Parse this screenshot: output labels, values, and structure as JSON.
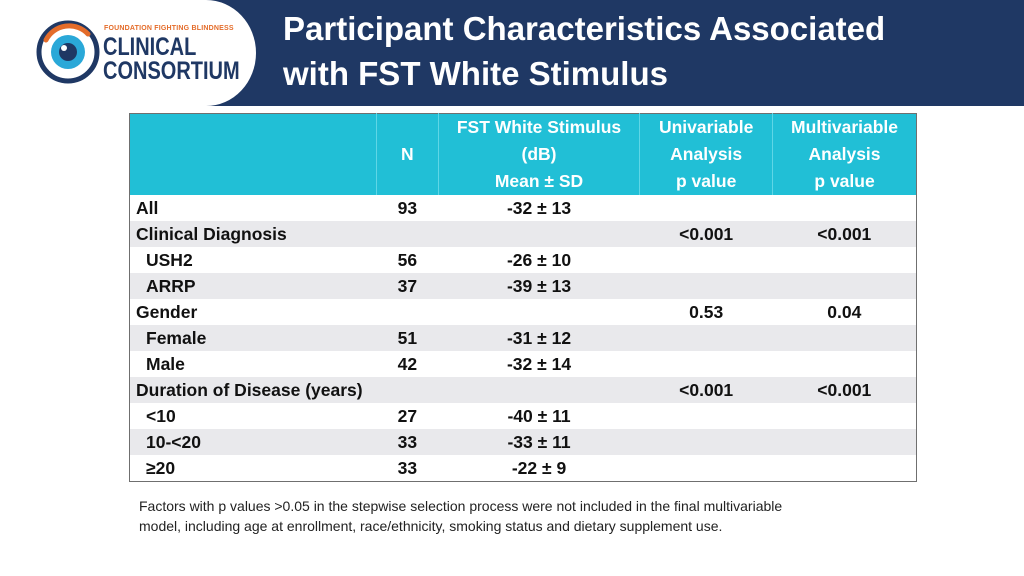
{
  "logo": {
    "tagline": "FOUNDATION FIGHTING BLINDNESS",
    "line1": "CLINICAL",
    "line2": "CONSORTIUM",
    "colors": {
      "navy": "#1f3864",
      "orange": "#e46c2a",
      "cyan": "#2aa8d8"
    },
    "icon": "eye-icon"
  },
  "header": {
    "title_line1": "Participant Characteristics Associated",
    "title_line2": "with FST White Stimulus",
    "background": "#1f3864"
  },
  "table": {
    "header_color": "#21bfd6",
    "columns": [
      {
        "lines": [
          ""
        ]
      },
      {
        "lines": [
          "N"
        ]
      },
      {
        "lines": [
          "FST White Stimulus",
          "(dB)",
          "Mean ± SD"
        ]
      },
      {
        "lines": [
          "Univariable",
          "Analysis",
          "p value"
        ]
      },
      {
        "lines": [
          "Multivariable",
          "Analysis",
          "p value"
        ]
      }
    ],
    "rows": [
      {
        "label": "All",
        "indent": false,
        "n": "93",
        "mean_sd": "-32 ± 13",
        "uni_p": "",
        "multi_p": ""
      },
      {
        "label": "Clinical Diagnosis",
        "indent": false,
        "n": "",
        "mean_sd": "",
        "uni_p": "<0.001",
        "multi_p": "<0.001"
      },
      {
        "label": "USH2",
        "indent": true,
        "n": "56",
        "mean_sd": "-26 ± 10",
        "uni_p": "",
        "multi_p": ""
      },
      {
        "label": "ARRP",
        "indent": true,
        "n": "37",
        "mean_sd": "-39 ± 13",
        "uni_p": "",
        "multi_p": ""
      },
      {
        "label": "Gender",
        "indent": false,
        "n": "",
        "mean_sd": "",
        "uni_p": "0.53",
        "multi_p": "0.04"
      },
      {
        "label": "Female",
        "indent": true,
        "n": "51",
        "mean_sd": "-31 ± 12",
        "uni_p": "",
        "multi_p": ""
      },
      {
        "label": "Male",
        "indent": true,
        "n": "42",
        "mean_sd": "-32 ± 14",
        "uni_p": "",
        "multi_p": ""
      },
      {
        "label": "Duration of Disease (years)",
        "indent": false,
        "n": "",
        "mean_sd": "",
        "uni_p": "<0.001",
        "multi_p": "<0.001"
      },
      {
        "label": "<10",
        "indent": true,
        "n": "27",
        "mean_sd": "-40 ± 11",
        "uni_p": "",
        "multi_p": ""
      },
      {
        "label": "10-<20",
        "indent": true,
        "n": "33",
        "mean_sd": "-33 ± 11",
        "uni_p": "",
        "multi_p": ""
      },
      {
        "label": "≥20",
        "indent": true,
        "n": "33",
        "mean_sd": "-22 ± 9",
        "uni_p": "",
        "multi_p": ""
      }
    ]
  },
  "footnote": {
    "line1": "Factors with p values >0.05 in the stepwise selection process were not included in the final multivariable",
    "line2": "model, including age at enrollment, race/ethnicity, smoking status and dietary supplement use."
  }
}
